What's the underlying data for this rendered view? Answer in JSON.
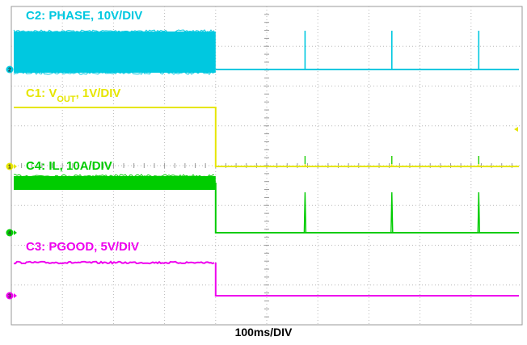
{
  "chart_data": {
    "type": "line",
    "title": "",
    "xlabel": "100ms/DIV",
    "ylabel": "",
    "x_divisions": 10,
    "y_divisions": 8,
    "grid": true,
    "events": {
      "fault_time_div": 4.0,
      "hiccup_pulses_div": [
        5.75,
        7.45,
        9.15
      ]
    },
    "series": [
      {
        "id": "C2",
        "prefix": "C2: PHASE, ",
        "sub": "",
        "suffix": "10V/DIV",
        "marker": "2",
        "color": "#00c8e0",
        "before": "switching",
        "after": "hiccup pulses"
      },
      {
        "id": "C1",
        "prefix": "C1: V",
        "sub": "OUT",
        "suffix": ", 1V/DIV",
        "marker": "1",
        "color": "#e6e600",
        "before": "high",
        "after": "low"
      },
      {
        "id": "C4",
        "prefix": "C4: IL, ",
        "sub": "",
        "suffix": "10A/DIV",
        "marker": "4",
        "color": "#00cc00",
        "before": "ripple current",
        "after": "hiccup pulses"
      },
      {
        "id": "C3",
        "prefix": "C3: PGOOD, ",
        "sub": "",
        "suffix": "5V/DIV",
        "marker": "3",
        "color": "#ee00ee",
        "before": "high",
        "after": "low"
      }
    ]
  }
}
